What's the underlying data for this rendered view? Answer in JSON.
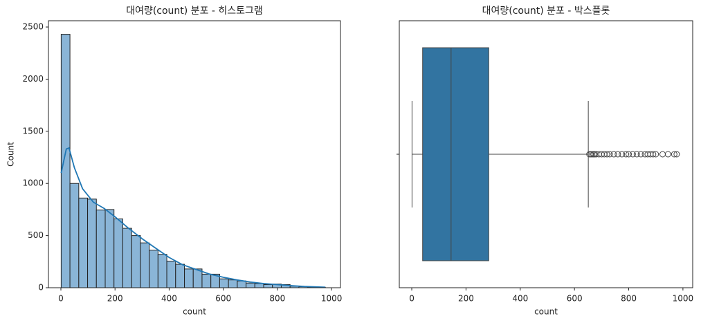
{
  "chart_data": [
    {
      "type": "histogram",
      "title": "대여량(count) 분포 - 히스토그램",
      "x_label": "count",
      "y_label": "Count",
      "bins": [
        1,
        33.5,
        66.1,
        98.6,
        131.1,
        163.7,
        196.2,
        228.7,
        261.3,
        293.8,
        326.3,
        358.9,
        391.4,
        423.9,
        456.5,
        489,
        521.5,
        554.1,
        586.6,
        619.1,
        651.7,
        684.2,
        716.7,
        749.3,
        781.8,
        814.3,
        846.9,
        879.4,
        911.9,
        944.5,
        977
      ],
      "values": [
        2430,
        1000,
        860,
        850,
        745,
        750,
        660,
        570,
        500,
        430,
        360,
        320,
        255,
        225,
        180,
        180,
        130,
        130,
        85,
        75,
        65,
        45,
        40,
        30,
        35,
        30,
        15,
        10,
        5,
        5
      ],
      "color": "#8ab5d7",
      "kde": {
        "color": "#1f77b4",
        "x": [
          1,
          20,
          30,
          50,
          80,
          120,
          160,
          200,
          250,
          300,
          350,
          400,
          450,
          500,
          550,
          600,
          650,
          700,
          750,
          800,
          850,
          900,
          977
        ],
        "values": [
          1100,
          1330,
          1340,
          1150,
          950,
          820,
          760,
          680,
          570,
          470,
          380,
          290,
          220,
          175,
          130,
          100,
          75,
          55,
          40,
          30,
          20,
          12,
          5
        ]
      },
      "xlim": [
        -46,
        1033
      ],
      "xticks": [
        0,
        200,
        400,
        600,
        800,
        1000
      ],
      "ylim": [
        0,
        2560
      ],
      "yticks": [
        0,
        500,
        1000,
        1500,
        2000,
        2500
      ]
    },
    {
      "type": "boxplot",
      "title": "대여량(count) 분포 - 박스플롯",
      "x_label": "count",
      "color": "#3274a1",
      "whisker_low": 1,
      "q1": 40,
      "median": 145,
      "q3": 284,
      "whisker_high": 651,
      "outliers": [
        655,
        660,
        665,
        670,
        675,
        680,
        690,
        700,
        710,
        720,
        730,
        745,
        760,
        775,
        790,
        800,
        815,
        830,
        845,
        860,
        870,
        880,
        890,
        900,
        925,
        945,
        968,
        977
      ],
      "xlim": [
        -46,
        1036
      ],
      "xticks": [
        0,
        200,
        400,
        600,
        800,
        1000
      ]
    }
  ]
}
